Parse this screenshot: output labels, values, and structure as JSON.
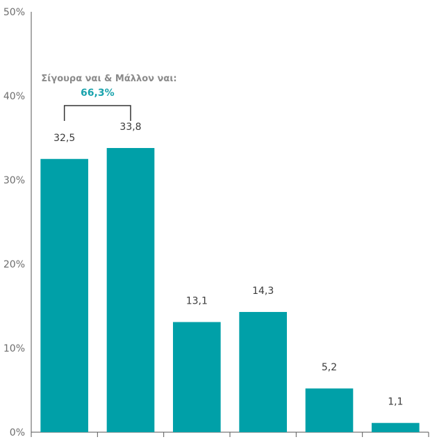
{
  "chart_data": {
    "type": "bar",
    "categories": [
      "",
      "",
      "",
      "",
      "",
      ""
    ],
    "values": [
      32.5,
      33.8,
      13.1,
      14.3,
      5.2,
      1.1
    ],
    "value_labels": [
      "32,5",
      "33,8",
      "13,1",
      "14,3",
      "5,2",
      "1,1"
    ],
    "ylim": [
      0,
      50
    ],
    "y_ticks": [
      "0%",
      "10%",
      "20%",
      "30%",
      "40%",
      "50%"
    ],
    "grid": false,
    "bar_color": "#00a0a8",
    "annotation": {
      "title": "Σίγουρα ναι & Μάλλον ναι:",
      "value": "66,3%",
      "value_color": "#1aa3ad",
      "spans_bars": [
        0,
        1
      ]
    }
  }
}
